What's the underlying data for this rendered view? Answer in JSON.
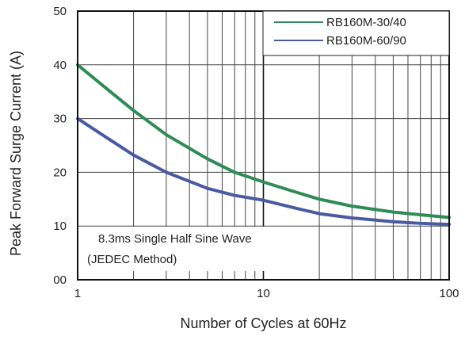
{
  "chart_data": {
    "type": "line",
    "xlabel": "Number of Cycles at 60Hz",
    "ylabel": "Peak Forward Surge Current (A)",
    "x_scale": "log",
    "xlim": [
      1,
      100
    ],
    "ylim": [
      0,
      50
    ],
    "x_ticks": [
      1,
      10,
      100
    ],
    "x_tick_labels": [
      "1",
      "10",
      "100"
    ],
    "y_ticks": [
      0,
      10,
      20,
      30,
      40,
      50
    ],
    "y_tick_labels": [
      "00",
      "10",
      "20",
      "30",
      "40",
      "50"
    ],
    "grid": true,
    "legend_position": "top-right",
    "annotation_lines": [
      "8.3ms Single Half Sine Wave",
      "(JEDEC Method)"
    ],
    "series": [
      {
        "name": "RB160M-30/40",
        "color": "#2e8b57",
        "x": [
          1,
          1.5,
          2,
          3,
          5,
          7,
          10,
          15,
          20,
          30,
          50,
          70,
          100
        ],
        "y": [
          40,
          35,
          31.5,
          27,
          22.5,
          20,
          18.2,
          16.3,
          15,
          13.7,
          12.6,
          12.1,
          11.6
        ]
      },
      {
        "name": "RB160M-60/90",
        "color": "#4a5aa0",
        "x": [
          1,
          1.5,
          2,
          3,
          5,
          7,
          10,
          15,
          20,
          30,
          50,
          70,
          100
        ],
        "y": [
          30,
          26,
          23.2,
          20,
          17,
          15.7,
          14.8,
          13.3,
          12.3,
          11.5,
          10.8,
          10.5,
          10.3
        ]
      }
    ]
  }
}
